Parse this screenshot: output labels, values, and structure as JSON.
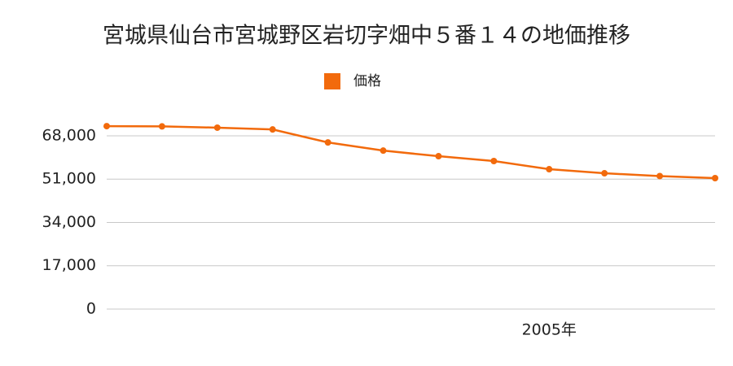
{
  "chart_data": {
    "type": "line",
    "title": "宮城県仙台市宮城野区岩切字畑中５番１４の地価推移",
    "categories": [
      null,
      null,
      null,
      null,
      null,
      null,
      null,
      null,
      "2005年",
      null,
      null,
      null
    ],
    "series": [
      {
        "name": "価格",
        "color": "#f26a0c",
        "values": [
          71800,
          71700,
          71200,
          70500,
          65400,
          62200,
          60000,
          58100,
          54900,
          53300,
          52200,
          51400
        ]
      }
    ],
    "ylim": [
      0,
      80000
    ],
    "yticks": [
      {
        "value": 0,
        "label": "0"
      },
      {
        "value": 17000,
        "label": "17,000"
      },
      {
        "value": 34000,
        "label": "34,000"
      },
      {
        "value": 51000,
        "label": "51,000"
      },
      {
        "value": 68000,
        "label": "68,000"
      }
    ],
    "grid": true
  }
}
